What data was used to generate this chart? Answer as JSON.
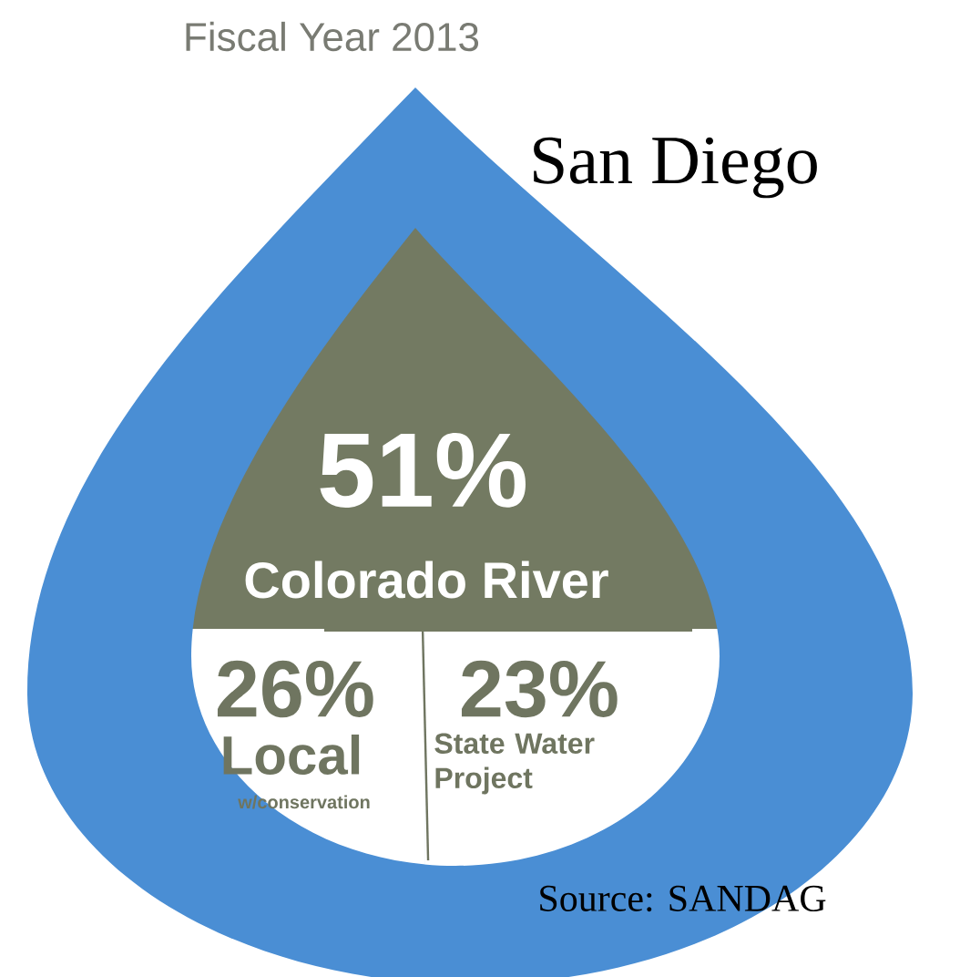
{
  "chart_data": {
    "type": "other",
    "title": "Fiscal Year 2013",
    "subtitle": "San Diego",
    "categories": [
      "Colorado River",
      "Local",
      "State Water Project"
    ],
    "values": [
      51,
      26,
      23
    ],
    "value_labels": [
      "51%",
      "26%",
      "23%"
    ],
    "colors": [
      "#737a62",
      "#ffffff",
      "#ffffff"
    ],
    "annotations": [
      "w/conservation",
      "Source: SANDAG"
    ]
  }
}
